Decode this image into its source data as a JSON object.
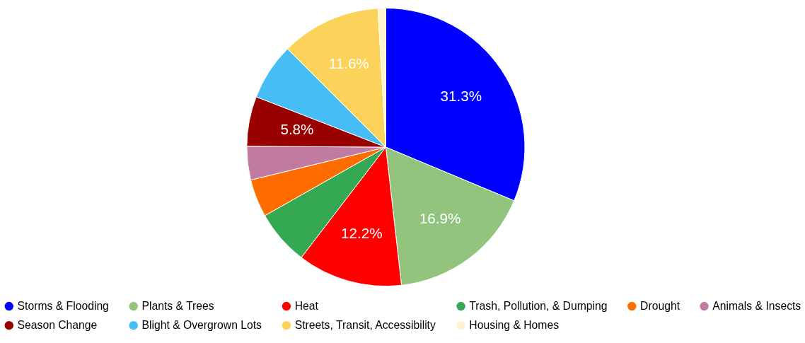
{
  "chart_data": {
    "type": "pie",
    "categories": [
      "Storms & Flooding",
      "Plants & Trees",
      "Heat",
      "Trash, Pollution, & Dumping",
      "Drought",
      "Animals & Insects",
      "Season Change",
      "Blight & Overgrown Lots",
      "Streets, Transit, Accessibility",
      "Housing & Homes"
    ],
    "values": [
      31.3,
      16.9,
      12.2,
      6.4,
      4.4,
      3.9,
      5.8,
      6.6,
      11.6,
      0.9
    ],
    "colors": [
      "#0000ff",
      "#93c47d",
      "#ff0000",
      "#34a853",
      "#ff6d01",
      "#c27ba0",
      "#990000",
      "#46bdf4",
      "#fbd25a",
      "#fff2cc"
    ],
    "value_labels": [
      "31.3%",
      "16.9%",
      "12.2%",
      null,
      null,
      null,
      "5.8%",
      null,
      "11.6%",
      null
    ],
    "legend": "bottom"
  }
}
